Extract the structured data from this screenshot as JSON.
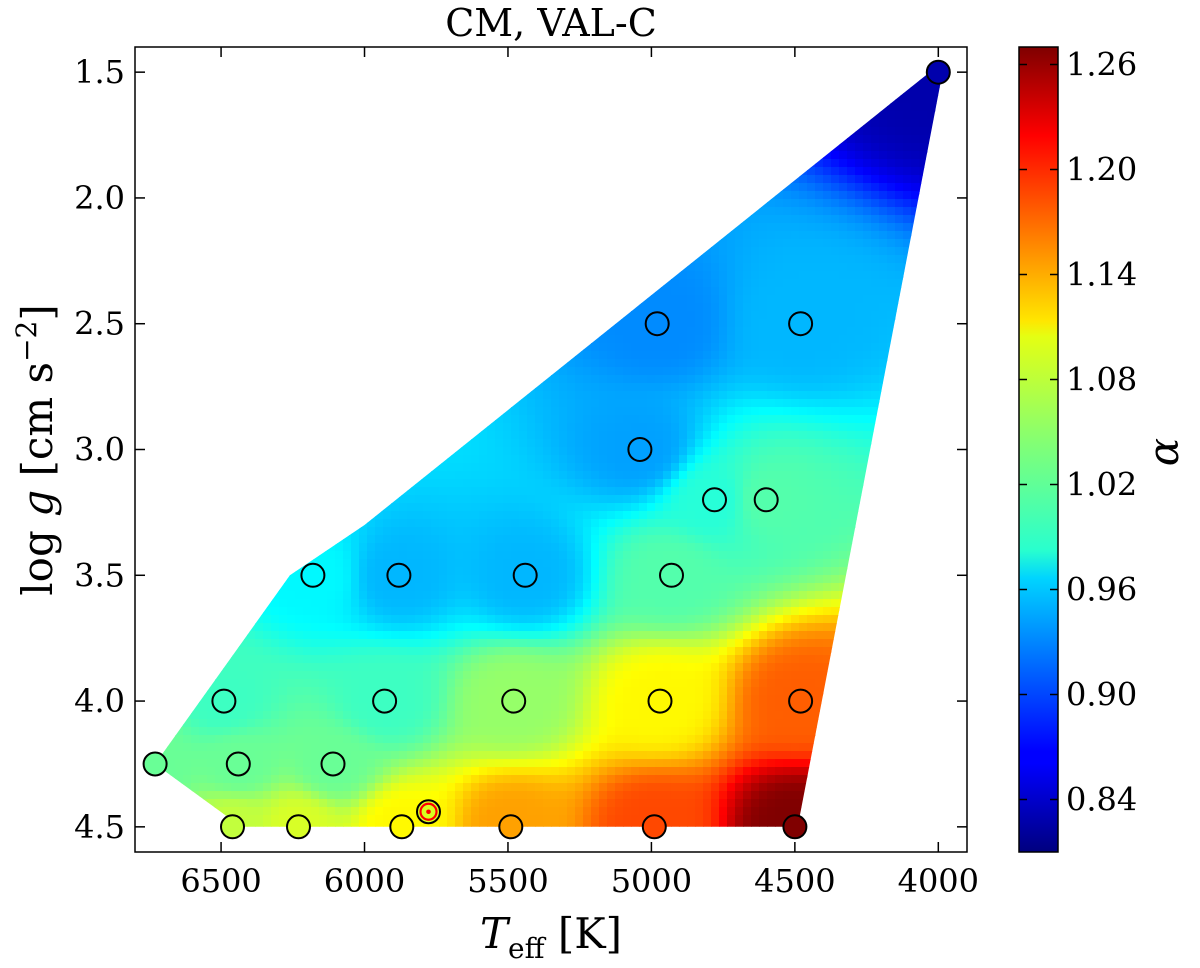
{
  "chart_data": {
    "type": "scatter",
    "title": "CM, VAL-C",
    "xlabel": "T_eff [K]",
    "xlabel_main": "T",
    "xlabel_sub": "eff",
    "xlabel_unit": "[K]",
    "ylabel": "log g [cm s^-2]",
    "ylabel_log": "log",
    "ylabel_g": "g",
    "ylabel_unit_pre": "[cm s",
    "ylabel_exp": "−2",
    "ylabel_unit_post": "]",
    "colorbar_label": "α",
    "xlim": [
      6800,
      3900
    ],
    "ylim": [
      4.6,
      1.4
    ],
    "x_ticks": [
      6500,
      6000,
      5500,
      5000,
      4500,
      4000
    ],
    "x_tick_labels": [
      "6500",
      "6000",
      "5500",
      "5000",
      "4500",
      "4000"
    ],
    "y_ticks": [
      1.5,
      2.0,
      2.5,
      3.0,
      3.5,
      4.0,
      4.5
    ],
    "y_tick_labels": [
      "1.5",
      "2.0",
      "2.5",
      "3.0",
      "3.5",
      "4.0",
      "4.5"
    ],
    "colorbar_range": [
      0.81,
      1.27
    ],
    "colorbar_ticks": [
      0.84,
      0.9,
      0.96,
      1.02,
      1.08,
      1.14,
      1.2,
      1.26
    ],
    "colorbar_tick_labels": [
      "0.84",
      "0.90",
      "0.96",
      "1.02",
      "1.08",
      "1.14",
      "1.20",
      "1.26"
    ],
    "surface_boundary": [
      [
        4030,
        1.5
      ],
      [
        3985,
        1.5
      ],
      [
        4490,
        4.5
      ],
      [
        6430,
        4.5
      ],
      [
        6730,
        4.25
      ],
      [
        6260,
        3.5
      ],
      [
        6000,
        3.3
      ],
      [
        4030,
        1.5
      ]
    ],
    "points": [
      {
        "teff": 4000,
        "logg": 1.5,
        "alpha": 0.83
      },
      {
        "teff": 4980,
        "logg": 2.5,
        "alpha": 0.93
      },
      {
        "teff": 4480,
        "logg": 2.5,
        "alpha": 0.95
      },
      {
        "teff": 5040,
        "logg": 3.0,
        "alpha": 0.94
      },
      {
        "teff": 4780,
        "logg": 3.2,
        "alpha": 1.0
      },
      {
        "teff": 4600,
        "logg": 3.2,
        "alpha": 1.02
      },
      {
        "teff": 6180,
        "logg": 3.5,
        "alpha": 0.98
      },
      {
        "teff": 5880,
        "logg": 3.5,
        "alpha": 0.95
      },
      {
        "teff": 5440,
        "logg": 3.5,
        "alpha": 0.95
      },
      {
        "teff": 4930,
        "logg": 3.5,
        "alpha": 1.02
      },
      {
        "teff": 6490,
        "logg": 4.0,
        "alpha": 1.01
      },
      {
        "teff": 5930,
        "logg": 4.0,
        "alpha": 1.01
      },
      {
        "teff": 5480,
        "logg": 4.0,
        "alpha": 1.05
      },
      {
        "teff": 4970,
        "logg": 4.0,
        "alpha": 1.1
      },
      {
        "teff": 4480,
        "logg": 4.0,
        "alpha": 1.17
      },
      {
        "teff": 6730,
        "logg": 4.25,
        "alpha": 1.03
      },
      {
        "teff": 6440,
        "logg": 4.25,
        "alpha": 1.03
      },
      {
        "teff": 6110,
        "logg": 4.25,
        "alpha": 1.03
      },
      {
        "teff": 6460,
        "logg": 4.5,
        "alpha": 1.07
      },
      {
        "teff": 6230,
        "logg": 4.5,
        "alpha": 1.08
      },
      {
        "teff": 5870,
        "logg": 4.5,
        "alpha": 1.1
      },
      {
        "teff": 5490,
        "logg": 4.5,
        "alpha": 1.14
      },
      {
        "teff": 4990,
        "logg": 4.5,
        "alpha": 1.18
      },
      {
        "teff": 4500,
        "logg": 4.5,
        "alpha": 1.27
      }
    ],
    "sun": {
      "teff": 5777,
      "logg": 4.44
    }
  }
}
